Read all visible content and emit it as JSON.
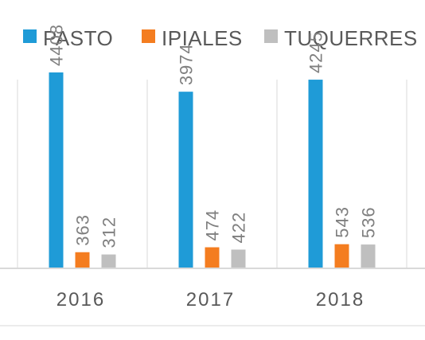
{
  "chart_data": {
    "type": "bar",
    "categories": [
      "2016",
      "2017",
      "2018"
    ],
    "series": [
      {
        "name": "PASTO",
        "values": [
          4408,
          3974,
          4245
        ],
        "color": "#1f9bd7"
      },
      {
        "name": "IPIALES",
        "values": [
          363,
          474,
          543
        ],
        "color": "#f47d20"
      },
      {
        "name": "TUQUERRES",
        "values": [
          312,
          422,
          536
        ],
        "color": "#bfbfbf"
      }
    ],
    "ylim": [
      0,
      5500
    ],
    "grid": false,
    "legend_position": "top",
    "data_labels": true,
    "data_label_orientation": "vertical",
    "title": "",
    "xlabel": "",
    "ylabel": ""
  }
}
